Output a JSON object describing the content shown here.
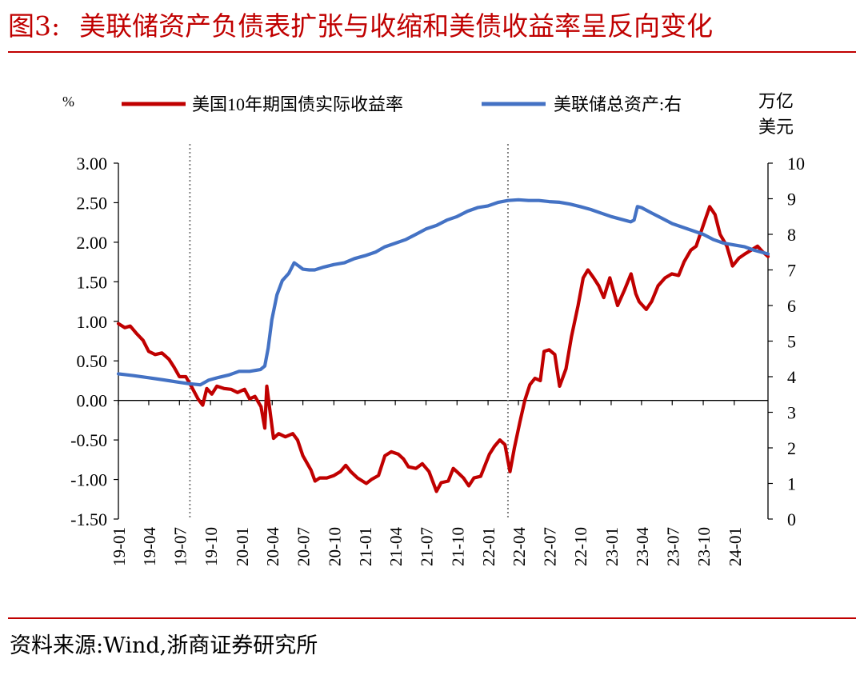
{
  "figure": {
    "number": "图3:",
    "title": "美联储资产负债表扩张与收缩和美债收益率呈反向变化",
    "source": "资料来源:Wind,浙商证券研究所"
  },
  "colors": {
    "title": "#c00000",
    "rule": "#c00000",
    "yield_line": "#c00000",
    "assets_line": "#4472c4",
    "axis": "#000000",
    "marker_line": "#808080"
  },
  "chart_data": {
    "type": "line",
    "left_unit": "%",
    "right_unit_lines": [
      "万亿",
      "美元"
    ],
    "ylim_left": [
      -1.5,
      3.0
    ],
    "ylim_right": [
      0,
      10
    ],
    "yticks_left": [
      "3.00",
      "2.50",
      "2.00",
      "1.50",
      "1.00",
      "0.50",
      "0.00",
      "-0.50",
      "-1.00",
      "-1.50"
    ],
    "yticks_right": [
      "10",
      "9",
      "8",
      "7",
      "6",
      "5",
      "4",
      "3",
      "2",
      "1",
      "0"
    ],
    "xticks": [
      "19-01",
      "19-04",
      "19-07",
      "19-10",
      "20-01",
      "20-04",
      "20-07",
      "20-10",
      "21-01",
      "21-04",
      "21-07",
      "21-10",
      "22-01",
      "22-04",
      "22-07",
      "22-10",
      "23-01",
      "23-04",
      "23-07",
      "23-10",
      "24-01"
    ],
    "x_range": [
      "2019-01-01",
      "2024-04-10"
    ],
    "grid": false,
    "legend_position": "top",
    "reference_dates": [
      "2019-08-01",
      "2022-03-01"
    ],
    "series": [
      {
        "name": "美国10年期国债实际收益率",
        "axis": "left",
        "points": [
          [
            "2019-01-01",
            0.97
          ],
          [
            "2019-01-20",
            0.92
          ],
          [
            "2019-02-05",
            0.94
          ],
          [
            "2019-02-25",
            0.84
          ],
          [
            "2019-03-15",
            0.76
          ],
          [
            "2019-04-01",
            0.62
          ],
          [
            "2019-04-20",
            0.58
          ],
          [
            "2019-05-10",
            0.6
          ],
          [
            "2019-05-31",
            0.52
          ],
          [
            "2019-06-15",
            0.42
          ],
          [
            "2019-07-01",
            0.3
          ],
          [
            "2019-07-20",
            0.3
          ],
          [
            "2019-08-05",
            0.18
          ],
          [
            "2019-08-25",
            0.02
          ],
          [
            "2019-09-08",
            -0.06
          ],
          [
            "2019-09-20",
            0.15
          ],
          [
            "2019-10-05",
            0.08
          ],
          [
            "2019-10-20",
            0.18
          ],
          [
            "2019-11-10",
            0.15
          ],
          [
            "2019-12-01",
            0.14
          ],
          [
            "2019-12-20",
            0.1
          ],
          [
            "2020-01-10",
            0.14
          ],
          [
            "2020-01-25",
            0.02
          ],
          [
            "2020-02-10",
            0.05
          ],
          [
            "2020-02-28",
            -0.08
          ],
          [
            "2020-03-10",
            -0.35
          ],
          [
            "2020-03-16",
            0.18
          ],
          [
            "2020-03-25",
            -0.12
          ],
          [
            "2020-04-05",
            -0.48
          ],
          [
            "2020-04-20",
            -0.42
          ],
          [
            "2020-05-10",
            -0.46
          ],
          [
            "2020-06-01",
            -0.42
          ],
          [
            "2020-06-15",
            -0.5
          ],
          [
            "2020-07-01",
            -0.7
          ],
          [
            "2020-07-25",
            -0.88
          ],
          [
            "2020-08-06",
            -1.02
          ],
          [
            "2020-08-20",
            -0.98
          ],
          [
            "2020-09-10",
            -0.98
          ],
          [
            "2020-10-01",
            -0.95
          ],
          [
            "2020-10-20",
            -0.9
          ],
          [
            "2020-11-05",
            -0.82
          ],
          [
            "2020-11-20",
            -0.9
          ],
          [
            "2020-12-10",
            -0.98
          ],
          [
            "2021-01-05",
            -1.05
          ],
          [
            "2021-01-20",
            -1.0
          ],
          [
            "2021-02-10",
            -0.95
          ],
          [
            "2021-03-01",
            -0.7
          ],
          [
            "2021-03-20",
            -0.65
          ],
          [
            "2021-04-10",
            -0.68
          ],
          [
            "2021-04-25",
            -0.74
          ],
          [
            "2021-05-10",
            -0.84
          ],
          [
            "2021-06-01",
            -0.86
          ],
          [
            "2021-06-20",
            -0.8
          ],
          [
            "2021-07-10",
            -0.9
          ],
          [
            "2021-08-01",
            -1.15
          ],
          [
            "2021-08-15",
            -1.04
          ],
          [
            "2021-09-05",
            -1.02
          ],
          [
            "2021-09-20",
            -0.86
          ],
          [
            "2021-10-05",
            -0.92
          ],
          [
            "2021-10-20",
            -0.98
          ],
          [
            "2021-11-05",
            -1.08
          ],
          [
            "2021-11-20",
            -0.98
          ],
          [
            "2021-12-10",
            -0.96
          ],
          [
            "2022-01-05",
            -0.68
          ],
          [
            "2022-01-20",
            -0.58
          ],
          [
            "2022-02-05",
            -0.5
          ],
          [
            "2022-02-20",
            -0.56
          ],
          [
            "2022-03-07",
            -0.9
          ],
          [
            "2022-03-20",
            -0.6
          ],
          [
            "2022-04-05",
            -0.28
          ],
          [
            "2022-04-20",
            0.0
          ],
          [
            "2022-05-05",
            0.2
          ],
          [
            "2022-05-20",
            0.28
          ],
          [
            "2022-06-05",
            0.25
          ],
          [
            "2022-06-16",
            0.62
          ],
          [
            "2022-07-01",
            0.64
          ],
          [
            "2022-07-18",
            0.58
          ],
          [
            "2022-08-01",
            0.18
          ],
          [
            "2022-08-20",
            0.4
          ],
          [
            "2022-09-05",
            0.8
          ],
          [
            "2022-09-25",
            1.2
          ],
          [
            "2022-10-10",
            1.55
          ],
          [
            "2022-10-24",
            1.65
          ],
          [
            "2022-11-10",
            1.55
          ],
          [
            "2022-11-25",
            1.45
          ],
          [
            "2022-12-10",
            1.3
          ],
          [
            "2022-12-28",
            1.55
          ],
          [
            "2023-01-20",
            1.2
          ],
          [
            "2023-02-10",
            1.4
          ],
          [
            "2023-03-01",
            1.6
          ],
          [
            "2023-03-15",
            1.35
          ],
          [
            "2023-03-25",
            1.25
          ],
          [
            "2023-04-15",
            1.15
          ],
          [
            "2023-05-01",
            1.25
          ],
          [
            "2023-05-20",
            1.45
          ],
          [
            "2023-06-10",
            1.55
          ],
          [
            "2023-06-30",
            1.6
          ],
          [
            "2023-07-20",
            1.58
          ],
          [
            "2023-08-05",
            1.75
          ],
          [
            "2023-08-25",
            1.9
          ],
          [
            "2023-09-10",
            1.95
          ],
          [
            "2023-09-30",
            2.2
          ],
          [
            "2023-10-20",
            2.45
          ],
          [
            "2023-11-05",
            2.35
          ],
          [
            "2023-11-20",
            2.1
          ],
          [
            "2023-12-10",
            1.95
          ],
          [
            "2023-12-27",
            1.7
          ],
          [
            "2024-01-15",
            1.8
          ],
          [
            "2024-02-01",
            1.85
          ],
          [
            "2024-02-20",
            1.9
          ],
          [
            "2024-03-10",
            1.95
          ],
          [
            "2024-03-25",
            1.88
          ],
          [
            "2024-04-10",
            1.82
          ]
        ]
      },
      {
        "name": "美联储总资产:右",
        "axis": "right",
        "points": [
          [
            "2019-01-01",
            4.08
          ],
          [
            "2019-02-15",
            4.03
          ],
          [
            "2019-04-01",
            3.97
          ],
          [
            "2019-05-15",
            3.91
          ],
          [
            "2019-07-01",
            3.84
          ],
          [
            "2019-08-01",
            3.8
          ],
          [
            "2019-09-01",
            3.77
          ],
          [
            "2019-09-25",
            3.9
          ],
          [
            "2019-10-25",
            3.98
          ],
          [
            "2019-11-25",
            4.05
          ],
          [
            "2019-12-25",
            4.15
          ],
          [
            "2020-01-25",
            4.15
          ],
          [
            "2020-02-26",
            4.2
          ],
          [
            "2020-03-10",
            4.3
          ],
          [
            "2020-03-20",
            4.8
          ],
          [
            "2020-03-31",
            5.6
          ],
          [
            "2020-04-15",
            6.3
          ],
          [
            "2020-05-01",
            6.7
          ],
          [
            "2020-05-20",
            6.9
          ],
          [
            "2020-06-05",
            7.2
          ],
          [
            "2020-06-20",
            7.1
          ],
          [
            "2020-07-01",
            7.02
          ],
          [
            "2020-07-20",
            7.0
          ],
          [
            "2020-08-05",
            7.0
          ],
          [
            "2020-09-01",
            7.08
          ],
          [
            "2020-10-01",
            7.15
          ],
          [
            "2020-11-01",
            7.2
          ],
          [
            "2020-12-01",
            7.32
          ],
          [
            "2021-01-01",
            7.4
          ],
          [
            "2021-02-01",
            7.5
          ],
          [
            "2021-03-01",
            7.65
          ],
          [
            "2021-04-01",
            7.75
          ],
          [
            "2021-05-01",
            7.85
          ],
          [
            "2021-06-01",
            8.0
          ],
          [
            "2021-07-01",
            8.15
          ],
          [
            "2021-08-01",
            8.25
          ],
          [
            "2021-09-01",
            8.4
          ],
          [
            "2021-10-01",
            8.5
          ],
          [
            "2021-11-01",
            8.65
          ],
          [
            "2021-12-01",
            8.75
          ],
          [
            "2022-01-01",
            8.8
          ],
          [
            "2022-02-01",
            8.9
          ],
          [
            "2022-03-01",
            8.95
          ],
          [
            "2022-04-01",
            8.97
          ],
          [
            "2022-05-01",
            8.95
          ],
          [
            "2022-06-01",
            8.95
          ],
          [
            "2022-07-01",
            8.92
          ],
          [
            "2022-08-01",
            8.9
          ],
          [
            "2022-09-01",
            8.85
          ],
          [
            "2022-10-01",
            8.78
          ],
          [
            "2022-11-01",
            8.7
          ],
          [
            "2022-12-01",
            8.6
          ],
          [
            "2023-01-01",
            8.5
          ],
          [
            "2023-02-01",
            8.42
          ],
          [
            "2023-02-28",
            8.35
          ],
          [
            "2023-03-10",
            8.4
          ],
          [
            "2023-03-20",
            8.78
          ],
          [
            "2023-04-01",
            8.75
          ],
          [
            "2023-05-01",
            8.6
          ],
          [
            "2023-06-01",
            8.45
          ],
          [
            "2023-07-01",
            8.3
          ],
          [
            "2023-08-01",
            8.2
          ],
          [
            "2023-09-01",
            8.1
          ],
          [
            "2023-10-01",
            8.0
          ],
          [
            "2023-11-01",
            7.85
          ],
          [
            "2023-12-01",
            7.75
          ],
          [
            "2024-01-01",
            7.7
          ],
          [
            "2024-02-01",
            7.65
          ],
          [
            "2024-03-01",
            7.55
          ],
          [
            "2024-04-10",
            7.45
          ]
        ]
      }
    ]
  }
}
